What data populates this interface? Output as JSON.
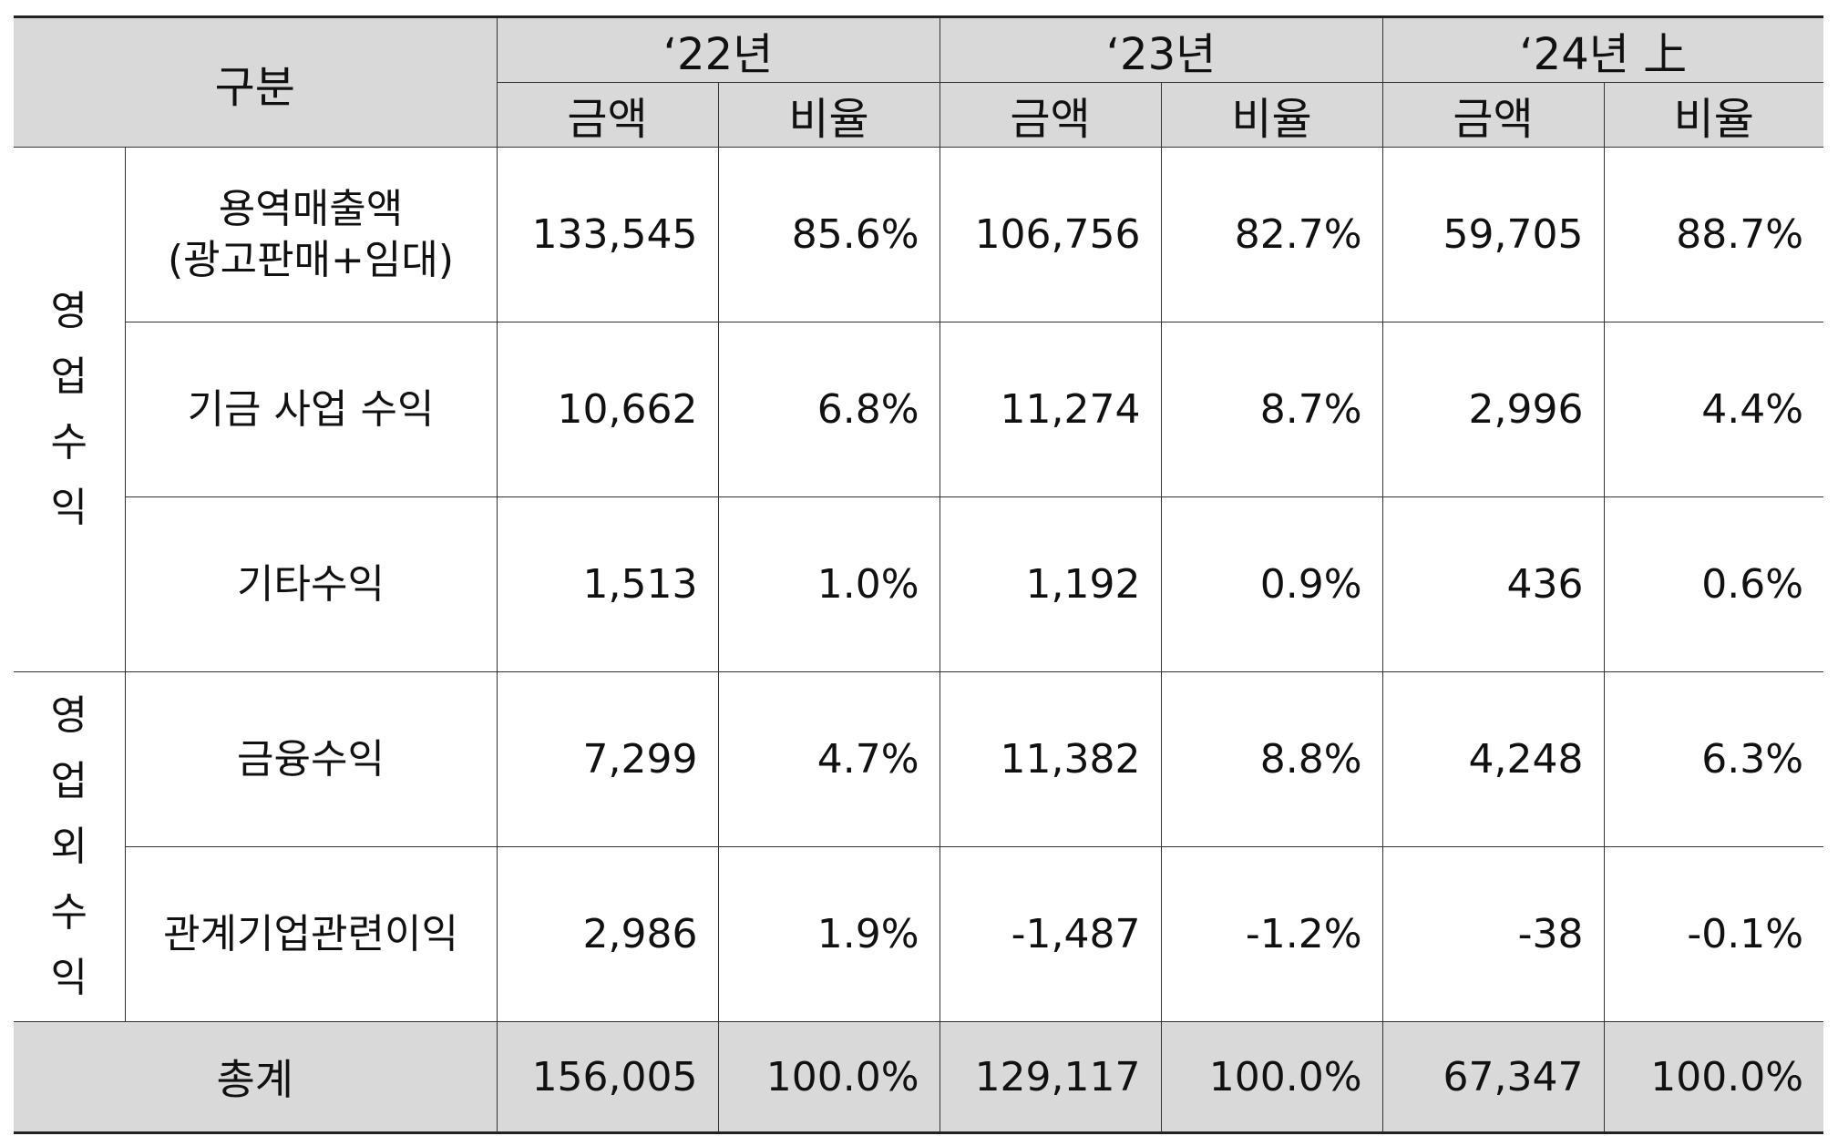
{
  "header": {
    "category": "구분",
    "years": [
      "‘22년",
      "‘23년",
      "‘24년 上"
    ],
    "amount": "금액",
    "ratio": "비율"
  },
  "groups": [
    {
      "label_chars": [
        "영",
        "업",
        "수",
        "익"
      ],
      "rows": [
        {
          "item_lines": [
            "용역매출액",
            "(광고판매+임대)"
          ],
          "values": [
            "133,545",
            "85.6%",
            "106,756",
            "82.7%",
            "59,705",
            "88.7%"
          ]
        },
        {
          "item_lines": [
            "기금 사업 수익"
          ],
          "values": [
            "10,662",
            "6.8%",
            "11,274",
            "8.7%",
            "2,996",
            "4.4%"
          ]
        },
        {
          "item_lines": [
            "기타수익"
          ],
          "values": [
            "1,513",
            "1.0%",
            "1,192",
            "0.9%",
            "436",
            "0.6%"
          ]
        }
      ]
    },
    {
      "label_chars": [
        "영",
        "업",
        "외",
        "수",
        "익"
      ],
      "rows": [
        {
          "item_lines": [
            "금융수익"
          ],
          "values": [
            "7,299",
            "4.7%",
            "11,382",
            "8.8%",
            "4,248",
            "6.3%"
          ]
        },
        {
          "item_lines": [
            "관계기업관련이익"
          ],
          "values": [
            "2,986",
            "1.9%",
            "-1,487",
            "-1.2%",
            "-38",
            "-0.1%"
          ]
        }
      ]
    }
  ],
  "total": {
    "label": "총계",
    "values": [
      "156,005",
      "100.0%",
      "129,117",
      "100.0%",
      "67,347",
      "100.0%"
    ]
  }
}
